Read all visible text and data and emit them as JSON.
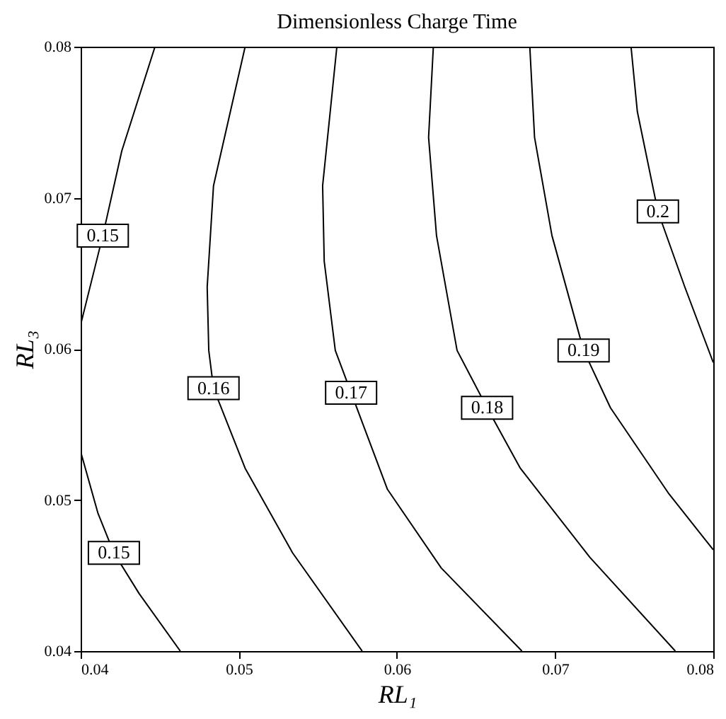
{
  "chart_data": {
    "type": "line",
    "title": "Dimensionless Charge Time",
    "xlabel": "RL₁",
    "ylabel": "RL₃",
    "xlim": [
      0.04,
      0.08
    ],
    "ylim": [
      0.04,
      0.08
    ],
    "xticks": [
      0.04,
      0.05,
      0.06,
      0.07,
      0.08
    ],
    "yticks": [
      0.04,
      0.05,
      0.06,
      0.07,
      0.08
    ],
    "grid": false,
    "series": [
      {
        "name": "0.15",
        "color": "#000000",
        "x": [
          0.0447,
          0.0426,
          0.0414,
          0.04
        ],
        "values": [
          0.08,
          0.0731,
          0.0675,
          0.0616
        ]
      },
      {
        "name": "0.15",
        "color": "#000000",
        "x": [
          0.04,
          0.0411,
          0.0421,
          0.0437,
          0.0463
        ],
        "values": [
          0.0532,
          0.0491,
          0.0465,
          0.0438,
          0.04
        ]
      },
      {
        "name": "0.16",
        "color": "#000000",
        "x": [
          0.0504,
          0.0484,
          0.048,
          0.0481,
          0.0484,
          0.0504,
          0.0534,
          0.0578
        ],
        "values": [
          0.08,
          0.0708,
          0.0641,
          0.0599,
          0.0574,
          0.0521,
          0.0465,
          0.04
        ]
      },
      {
        "name": "0.17",
        "color": "#000000",
        "x": [
          0.0562,
          0.0553,
          0.0554,
          0.0561,
          0.0571,
          0.0594,
          0.0628,
          0.0679
        ],
        "values": [
          0.08,
          0.0708,
          0.0658,
          0.0599,
          0.0571,
          0.0507,
          0.0455,
          0.04
        ]
      },
      {
        "name": "0.18",
        "color": "#000000",
        "x": [
          0.0623,
          0.062,
          0.0625,
          0.0638,
          0.0657,
          0.0678,
          0.0722,
          0.0776
        ],
        "values": [
          0.08,
          0.074,
          0.0675,
          0.0599,
          0.0561,
          0.0521,
          0.0462,
          0.04
        ]
      },
      {
        "name": "0.19",
        "color": "#000000",
        "x": [
          0.0684,
          0.0687,
          0.0698,
          0.0718,
          0.0735,
          0.0772,
          0.08
        ],
        "values": [
          0.08,
          0.074,
          0.0675,
          0.0599,
          0.0561,
          0.0504,
          0.0467
        ]
      },
      {
        "name": "0.2",
        "color": "#000000",
        "x": [
          0.0748,
          0.0752,
          0.0765,
          0.0782,
          0.08
        ],
        "values": [
          0.08,
          0.0757,
          0.0691,
          0.0641,
          0.0591
        ]
      }
    ]
  }
}
